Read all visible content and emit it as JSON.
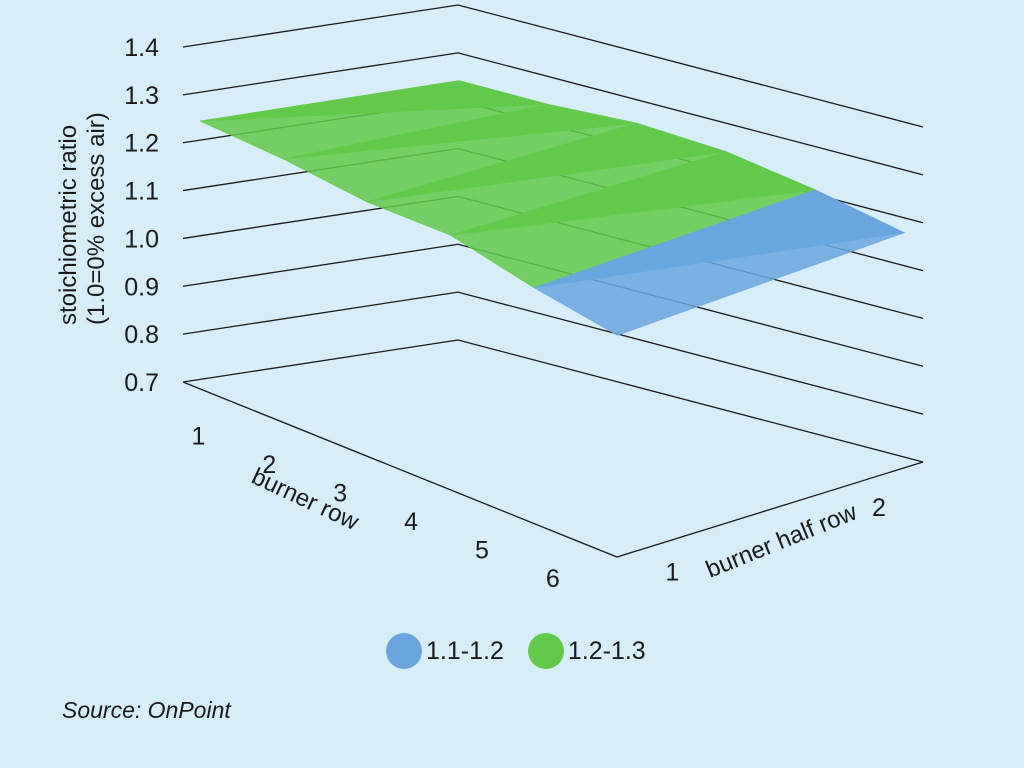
{
  "chart_data": {
    "type": "surface",
    "zlabel_lines": [
      "stoichiometric ratio",
      "(1.0=0% excess air)"
    ],
    "xlabel": "burner row",
    "ylabel": "burner half row",
    "z_ticks": [
      "1.4",
      "1.3",
      "1.2",
      "1.1",
      "1.0",
      "0.9",
      "0.8",
      "0.7"
    ],
    "zlim": [
      0.7,
      1.4
    ],
    "x_ticks": [
      "1",
      "2",
      "3",
      "4",
      "5",
      "6"
    ],
    "y_ticks": [
      "1",
      "2"
    ],
    "grid": true,
    "legend_position": "bottom",
    "bands": [
      {
        "name": "1.1-1.2",
        "color": "#6aa6de"
      },
      {
        "name": "1.2-1.3",
        "color": "#62c94a"
      }
    ],
    "values": [
      [
        1.25,
        1.25
      ],
      [
        1.24,
        1.25
      ],
      [
        1.22,
        1.26
      ],
      [
        1.22,
        1.25
      ],
      [
        1.18,
        1.22
      ],
      [
        1.15,
        1.18
      ]
    ]
  },
  "source": "Source: OnPoint"
}
